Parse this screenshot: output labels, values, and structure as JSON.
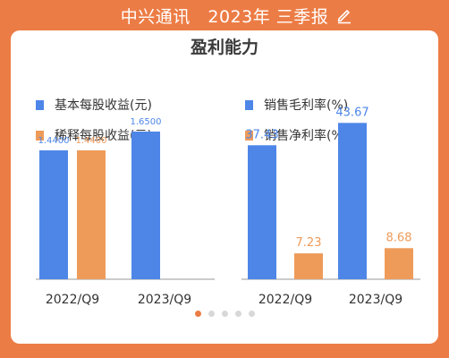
{
  "header": {
    "title": "中兴通讯   2023年 三季报",
    "edit_icon": "pencil-icon"
  },
  "card": {
    "title": "盈利能力"
  },
  "colors": {
    "background": "#EC7C45",
    "blue": "#4E86E8",
    "orange": "#EE9B5A",
    "active_dot": "#EC7C45"
  },
  "pager": {
    "pages": 5,
    "active": 0
  },
  "chart_data": [
    {
      "type": "bar",
      "categories": [
        "2022/Q9",
        "2023/Q9"
      ],
      "series": [
        {
          "name": "基本每股收益(元)",
          "color": "#4E86E8",
          "values": [
            1.44,
            1.65
          ],
          "labels": [
            "1.4400",
            "1.6500"
          ]
        },
        {
          "name": "稀释每股收益(元)",
          "color": "#EE9B5A",
          "values": [
            1.44,
            null
          ],
          "labels": [
            "1.4400",
            ""
          ]
        }
      ],
      "ylim": [
        0,
        2.0
      ],
      "legend": "top-left",
      "grid": false
    },
    {
      "type": "bar",
      "categories": [
        "2022/Q9",
        "2023/Q9"
      ],
      "series": [
        {
          "name": "销售毛利率(%)",
          "color": "#4E86E8",
          "values": [
            37.43,
            43.67
          ],
          "labels": [
            "37.43",
            "43.67"
          ]
        },
        {
          "name": "销售净利率(%)",
          "color": "#EE9B5A",
          "values": [
            7.23,
            8.68
          ],
          "labels": [
            "7.23",
            "8.68"
          ]
        }
      ],
      "ylim": [
        0,
        50
      ],
      "legend": "top-left",
      "grid": false
    }
  ]
}
